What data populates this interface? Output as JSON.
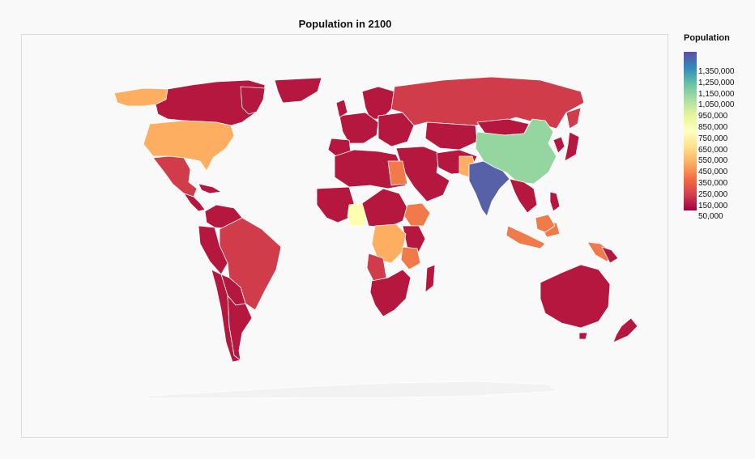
{
  "map": {
    "title": "Population in 2100"
  },
  "legend": {
    "title": "Population",
    "ticks": [
      "1,350,000",
      "1,250,000",
      "1,150,000",
      "1,050,000",
      "950,000",
      "850,000",
      "750,000",
      "650,000",
      "550,000",
      "450,000",
      "350,000",
      "250,000",
      "150,000",
      "50,000"
    ],
    "scale": [
      "#9e0142",
      "#d53e4f",
      "#f46d43",
      "#fdae61",
      "#fee08b",
      "#ffffbf",
      "#e6f598",
      "#abdda4",
      "#66c2a5",
      "#3288bd",
      "#5e4fa2"
    ]
  },
  "colors": {
    "background": "#f9f9f9",
    "border": "#dcdcdc",
    "country_stroke": "#ffffff",
    "low": "#b5173f",
    "low_mid": "#d13c4b",
    "mid": "#f07a4a",
    "mid_high": "#fdae61",
    "nigeria": "#fefeb0",
    "china": "#95d5a0",
    "india": "#5661a8"
  }
}
